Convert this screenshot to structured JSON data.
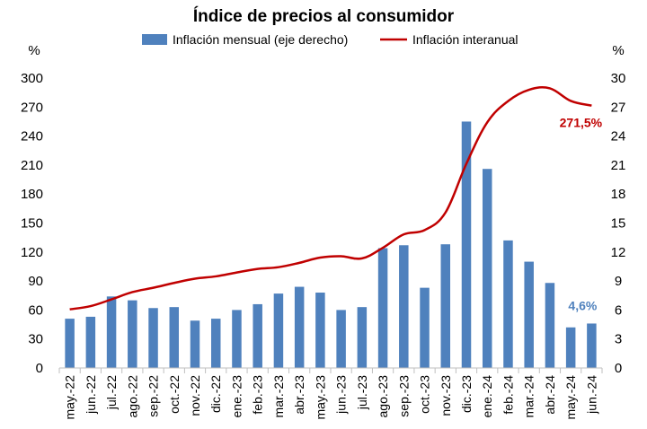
{
  "chart_data": {
    "type": "bar",
    "title": "Índice de precios al consumidor",
    "y_left_unit": "%",
    "y_right_unit": "%",
    "categories": [
      "may.-22",
      "jun.-22",
      "jul.-22",
      "ago.-22",
      "sep.-22",
      "oct.-22",
      "nov.-22",
      "dic.-22",
      "ene.-23",
      "feb.-23",
      "mar.-23",
      "abr.-23",
      "may.-23",
      "jun.-23",
      "jul.-23",
      "ago.-23",
      "sep.-23",
      "oct.-23",
      "nov.-23",
      "dic.-23",
      "ene.-24",
      "feb.-24",
      "mar.-24",
      "abr.-24",
      "may.-24",
      "jun.-24"
    ],
    "series": [
      {
        "name": "Inflación mensual (eje derecho)",
        "type": "bar",
        "axis": "right",
        "color": "#4f81bd",
        "values": [
          5.1,
          5.3,
          7.4,
          7.0,
          6.2,
          6.3,
          4.9,
          5.1,
          6.0,
          6.6,
          7.7,
          8.4,
          7.8,
          6.0,
          6.3,
          12.4,
          12.7,
          8.3,
          12.8,
          25.5,
          20.6,
          13.2,
          11.0,
          8.8,
          4.2,
          4.6
        ]
      },
      {
        "name": "Inflación interanual",
        "type": "line",
        "axis": "left",
        "color": "#c00000",
        "values": [
          60.7,
          64.0,
          71.0,
          78.5,
          83.0,
          88.0,
          92.4,
          94.8,
          98.8,
          102.5,
          104.3,
          108.8,
          114.2,
          115.6,
          113.4,
          124.4,
          138.3,
          142.7,
          160.9,
          211.4,
          254.2,
          276.2,
          287.9,
          289.4,
          276.4,
          271.5
        ]
      }
    ],
    "y_left": {
      "min": 0,
      "max": 300,
      "ticks": [
        "0",
        "30",
        "60",
        "90",
        "120",
        "150",
        "180",
        "210",
        "240",
        "270",
        "300"
      ]
    },
    "y_right": {
      "min": 0,
      "max": 30,
      "ticks": [
        "0",
        "3",
        "6",
        "9",
        "12",
        "15",
        "18",
        "21",
        "24",
        "27",
        "30"
      ]
    },
    "legend_position": "top",
    "grid": false,
    "annotations": [
      {
        "text": "271,5%",
        "series": "Inflación interanual",
        "category": "jun.-24",
        "color": "#c00000"
      },
      {
        "text": "4,6%",
        "series": "Inflación mensual (eje derecho)",
        "category": "jun.-24",
        "color": "#4f81bd"
      }
    ]
  }
}
